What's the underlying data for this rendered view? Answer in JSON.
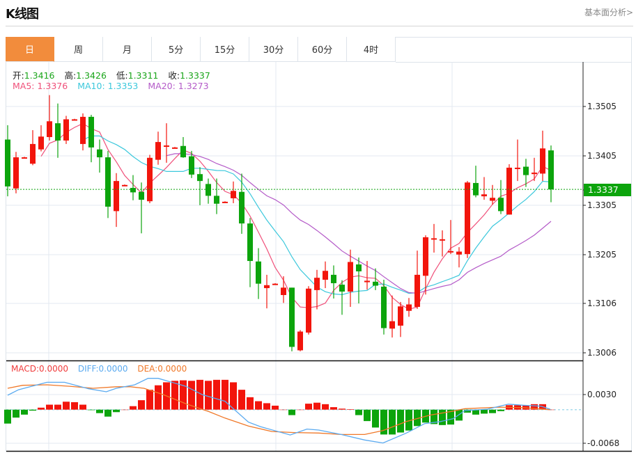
{
  "header": {
    "title": "K线图",
    "more_link": "基本面分析>"
  },
  "tabs": [
    {
      "label": "日",
      "active": true
    },
    {
      "label": "周"
    },
    {
      "label": "月"
    },
    {
      "label": "5分"
    },
    {
      "label": "15分"
    },
    {
      "label": "30分"
    },
    {
      "label": "60分"
    },
    {
      "label": "4时"
    }
  ],
  "ohlc_legend": {
    "open_label": "开:",
    "open": "1.3416",
    "high_label": "高:",
    "high": "1.3426",
    "low_label": "低:",
    "low": "1.3311",
    "close_label": "收:",
    "close": "1.3337"
  },
  "ma_legend": {
    "ma5": "MA5: 1.3376",
    "ma10": "MA10: 1.3353",
    "ma20": "MA20: 1.3273"
  },
  "macd_legend": {
    "macd": "MACD:0.0000",
    "diff": "DIFF:0.0000",
    "dea": "DEA:0.0000"
  },
  "current_price": "1.3337",
  "colors": {
    "up": "#f2150c",
    "down": "#0ca40c",
    "ma5": "#f0507a",
    "ma10": "#3cc8dc",
    "ma20": "#b45ac8",
    "diff": "#5aaaf0",
    "dea": "#f07828",
    "accent": "#f28c3c"
  },
  "chart_data": {
    "type": "candlestick",
    "price_axis": {
      "ticks": [
        "1.3505",
        "1.3405",
        "1.3305",
        "1.3205",
        "1.3106",
        "1.3006"
      ],
      "range": [
        1.3006,
        1.3505
      ]
    },
    "macd_axis": {
      "ticks": [
        "0.0030",
        "-0.0068"
      ]
    },
    "candles_ohlc": [
      [
        1.3438,
        1.3467,
        1.3323,
        1.3343
      ],
      [
        1.3339,
        1.3413,
        1.3329,
        1.3402
      ],
      [
        1.3402,
        1.3403,
        1.3401,
        1.3402
      ],
      [
        1.3389,
        1.3457,
        1.3386,
        1.3429
      ],
      [
        1.3418,
        1.3467,
        1.3414,
        1.3444
      ],
      [
        1.3443,
        1.3528,
        1.3436,
        1.3475
      ],
      [
        1.3471,
        1.3511,
        1.3401,
        1.3436
      ],
      [
        1.3436,
        1.3486,
        1.3429,
        1.3479
      ],
      [
        1.3479,
        1.348,
        1.3478,
        1.3479
      ],
      [
        1.3429,
        1.3491,
        1.3416,
        1.3484
      ],
      [
        1.3484,
        1.3488,
        1.3392,
        1.3422
      ],
      [
        1.3418,
        1.3438,
        1.3371,
        1.3402
      ],
      [
        1.3402,
        1.3415,
        1.3279,
        1.3302
      ],
      [
        1.3293,
        1.337,
        1.3261,
        1.3354
      ],
      [
        1.3346,
        1.3347,
        1.3345,
        1.3346
      ],
      [
        1.334,
        1.3366,
        1.3315,
        1.3331
      ],
      [
        1.3332,
        1.3351,
        1.3248,
        1.3316
      ],
      [
        1.3313,
        1.3407,
        1.3309,
        1.3401
      ],
      [
        1.3397,
        1.3454,
        1.3387,
        1.3433
      ],
      [
        1.3426,
        1.3471,
        1.3391,
        1.3426
      ],
      [
        1.3422,
        1.3423,
        1.3421,
        1.3422
      ],
      [
        1.3425,
        1.3443,
        1.3401,
        1.3402
      ],
      [
        1.3404,
        1.3415,
        1.336,
        1.3367
      ],
      [
        1.3368,
        1.3382,
        1.3305,
        1.3354
      ],
      [
        1.3348,
        1.3359,
        1.3308,
        1.3324
      ],
      [
        1.3324,
        1.3359,
        1.3287,
        1.3308
      ],
      [
        1.3312,
        1.3313,
        1.3311,
        1.3312
      ],
      [
        1.3319,
        1.3353,
        1.3309,
        1.3334
      ],
      [
        1.3332,
        1.3369,
        1.3247,
        1.3268
      ],
      [
        1.3268,
        1.3279,
        1.3139,
        1.3192
      ],
      [
        1.3191,
        1.3218,
        1.3115,
        1.3146
      ],
      [
        1.3137,
        1.3164,
        1.3096,
        1.3143
      ],
      [
        1.3146,
        1.3147,
        1.3145,
        1.3146
      ],
      [
        1.3123,
        1.3161,
        1.3107,
        1.3138
      ],
      [
        1.3138,
        1.3138,
        1.3009,
        1.3018
      ],
      [
        1.3011,
        1.3052,
        1.3009,
        1.3049
      ],
      [
        1.3047,
        1.3141,
        1.3043,
        1.3136
      ],
      [
        1.3133,
        1.3174,
        1.3094,
        1.3158
      ],
      [
        1.3154,
        1.3191,
        1.3137,
        1.3172
      ],
      [
        1.3164,
        1.3183,
        1.3116,
        1.3147
      ],
      [
        1.3144,
        1.3153,
        1.3083,
        1.313
      ],
      [
        1.313,
        1.3215,
        1.3099,
        1.319
      ],
      [
        1.3185,
        1.3199,
        1.3106,
        1.3171
      ],
      [
        1.3149,
        1.3192,
        1.3134,
        1.3152
      ],
      [
        1.315,
        1.3177,
        1.3133,
        1.3142
      ],
      [
        1.314,
        1.3154,
        1.3043,
        1.3056
      ],
      [
        1.3055,
        1.3122,
        1.3037,
        1.307
      ],
      [
        1.3061,
        1.3109,
        1.3038,
        1.31
      ],
      [
        1.3091,
        1.3117,
        1.3079,
        1.3104
      ],
      [
        1.3099,
        1.3213,
        1.3095,
        1.3164
      ],
      [
        1.3162,
        1.3244,
        1.3124,
        1.324
      ],
      [
        1.3238,
        1.3267,
        1.3209,
        1.3238
      ],
      [
        1.3236,
        1.3254,
        1.3201,
        1.3236
      ],
      [
        1.3212,
        1.3275,
        1.3206,
        1.3212
      ],
      [
        1.3205,
        1.322,
        1.3179,
        1.3211
      ],
      [
        1.3206,
        1.3354,
        1.3198,
        1.3351
      ],
      [
        1.335,
        1.3385,
        1.3321,
        1.3325
      ],
      [
        1.3323,
        1.3362,
        1.3316,
        1.3327
      ],
      [
        1.3314,
        1.3346,
        1.3306,
        1.332
      ],
      [
        1.332,
        1.3356,
        1.3287,
        1.3293
      ],
      [
        1.3286,
        1.3388,
        1.3286,
        1.3381
      ],
      [
        1.3381,
        1.3438,
        1.3354,
        1.3381
      ],
      [
        1.3383,
        1.3399,
        1.3342,
        1.3366
      ],
      [
        1.3368,
        1.3401,
        1.3354,
        1.3371
      ],
      [
        1.3369,
        1.3456,
        1.3354,
        1.342
      ],
      [
        1.3416,
        1.3426,
        1.3311,
        1.3337
      ]
    ],
    "macd_hist": [
      -0.0028,
      -0.0016,
      -0.001,
      -0.0002,
      0.0004,
      0.001,
      0.001,
      0.0016,
      0.0015,
      0.001,
      -0.0001,
      -0.0007,
      -0.0014,
      -0.0005,
      -0.0,
      0.0007,
      0.0019,
      0.004,
      0.0049,
      0.0055,
      0.0058,
      0.0059,
      0.0058,
      0.006,
      0.0058,
      0.006,
      0.006,
      0.0055,
      0.004,
      0.0025,
      0.0017,
      0.0013,
      0.0008,
      0.0,
      -0.0011,
      0.0,
      0.0012,
      0.0014,
      0.0011,
      0.0005,
      0.0002,
      0.0001,
      -0.0011,
      -0.0023,
      -0.0036,
      -0.005,
      -0.005,
      -0.0046,
      -0.0042,
      -0.0033,
      -0.0026,
      -0.0029,
      -0.0031,
      -0.003,
      -0.0022,
      -0.0006,
      -0.001,
      -0.0008,
      -0.0007,
      -0.0003,
      0.0009,
      0.0009,
      0.0008,
      0.0011,
      0.0011,
      0.0
    ],
    "diff_points": [
      [
        0,
        0.0029
      ],
      [
        1.3,
        0.004
      ],
      [
        4.7,
        0.0055
      ],
      [
        6.8,
        0.0055
      ],
      [
        9.7,
        0.0042
      ],
      [
        11.8,
        0.0036
      ],
      [
        13,
        0.0043
      ],
      [
        15.2,
        0.005
      ],
      [
        16.8,
        0.0063
      ],
      [
        18,
        0.0063
      ],
      [
        21.3,
        0.0047
      ],
      [
        23.3,
        0.003
      ],
      [
        26,
        0.0017
      ],
      [
        28.8,
        -0.0025
      ],
      [
        30.2,
        -0.0034
      ],
      [
        33.8,
        -0.0051
      ],
      [
        35.8,
        -0.0039
      ],
      [
        37.2,
        -0.0041
      ],
      [
        39.9,
        -0.005
      ],
      [
        42.7,
        -0.0061
      ],
      [
        44.9,
        -0.0067
      ],
      [
        47.7,
        -0.0047
      ],
      [
        49.9,
        -0.0028
      ],
      [
        51.8,
        -0.0024
      ],
      [
        53.3,
        -0.0018
      ],
      [
        54.7,
        -0.0002
      ],
      [
        57.4,
        0.0001
      ],
      [
        59.9,
        0.0011
      ],
      [
        61.6,
        0.0009
      ],
      [
        63.8,
        0.0007
      ],
      [
        64.9,
        0.0001
      ]
    ],
    "dea_points": [
      [
        0,
        0.0043
      ],
      [
        1.8,
        0.0049
      ],
      [
        4.7,
        0.005
      ],
      [
        7.4,
        0.0047
      ],
      [
        10.2,
        0.0043
      ],
      [
        13,
        0.0046
      ],
      [
        14.7,
        0.0046
      ],
      [
        16.3,
        0.0043
      ],
      [
        18.5,
        0.0031
      ],
      [
        21.3,
        0.0012
      ],
      [
        24.1,
        -0.0004
      ],
      [
        26,
        -0.0017
      ],
      [
        28.8,
        -0.0033
      ],
      [
        31.6,
        -0.0044
      ],
      [
        34.3,
        -0.0046
      ],
      [
        37.2,
        -0.0047
      ],
      [
        39.9,
        -0.005
      ],
      [
        42.7,
        -0.005
      ],
      [
        44.9,
        -0.0042
      ],
      [
        47.7,
        -0.0024
      ],
      [
        50.5,
        -0.0011
      ],
      [
        53.3,
        -0.0003
      ],
      [
        54.7,
        0.0002
      ],
      [
        58.8,
        0.0005
      ],
      [
        61.6,
        0.0004
      ],
      [
        64.9,
        0.0
      ]
    ],
    "ma_periods": [
      5,
      10,
      20
    ]
  }
}
